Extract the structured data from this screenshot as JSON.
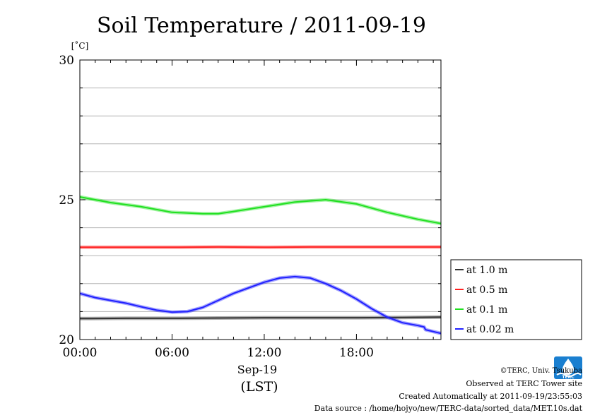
{
  "chart_data": {
    "type": "line",
    "title": "Soil Temperature / 2011-09-19",
    "ylabel": "[˚C]",
    "xlabel_date": "Sep-19",
    "xlabel_tz": "(LST)",
    "ylim": [
      20,
      30
    ],
    "yticks": [
      "20",
      "25",
      "30"
    ],
    "xlim": [
      0,
      23.5
    ],
    "xticks": [
      {
        "hour": 0,
        "label": "00:00"
      },
      {
        "hour": 6,
        "label": "06:00"
      },
      {
        "hour": 12,
        "label": "12:00"
      },
      {
        "hour": 18,
        "label": "18:00"
      }
    ],
    "grid": true,
    "legend_position": "right",
    "series": [
      {
        "name": "at 1.0 m",
        "color": "#333333",
        "x": [
          0,
          3,
          6,
          9,
          12,
          15,
          18,
          21,
          23.5
        ],
        "y": [
          20.75,
          20.76,
          20.76,
          20.77,
          20.78,
          20.78,
          20.78,
          20.79,
          20.8
        ]
      },
      {
        "name": "at 0.5 m",
        "color": "#ff2020",
        "x": [
          0,
          3,
          6,
          9,
          12,
          15,
          18,
          21,
          23.5
        ],
        "y": [
          23.3,
          23.3,
          23.3,
          23.31,
          23.3,
          23.31,
          23.31,
          23.31,
          23.31
        ]
      },
      {
        "name": "at 0.1 m",
        "color": "#20e020",
        "x": [
          0,
          2,
          4,
          6,
          8,
          9,
          10,
          12,
          14,
          16,
          18,
          20,
          22,
          23.5
        ],
        "y": [
          25.1,
          24.9,
          24.75,
          24.55,
          24.5,
          24.5,
          24.58,
          24.75,
          24.92,
          25.0,
          24.85,
          24.55,
          24.3,
          24.15
        ]
      },
      {
        "name": "at 0.02 m",
        "color": "#2020ff",
        "x": [
          0,
          1,
          2,
          3,
          4,
          5,
          6,
          7,
          8,
          9,
          10,
          11,
          12,
          13,
          14,
          15,
          16,
          17,
          18,
          19,
          20,
          21,
          22,
          22.4,
          22.5,
          23.5
        ],
        "y": [
          21.65,
          21.5,
          21.4,
          21.3,
          21.17,
          21.05,
          20.98,
          21.0,
          21.15,
          21.4,
          21.65,
          21.85,
          22.05,
          22.2,
          22.25,
          22.2,
          22.0,
          21.75,
          21.45,
          21.1,
          20.8,
          20.6,
          20.5,
          20.45,
          20.35,
          20.22
        ]
      }
    ]
  },
  "credits": {
    "copyright": "©TERC, Univ. Tsukuba",
    "site": "Observed at TERC Tower site",
    "created": "Created Automatically at 2011-09-19/23:55:03",
    "source": "Data source : /home/hojyo/new/TERC-data/sorted_data/MET.10s.dat",
    "logo_text": "TERC"
  }
}
